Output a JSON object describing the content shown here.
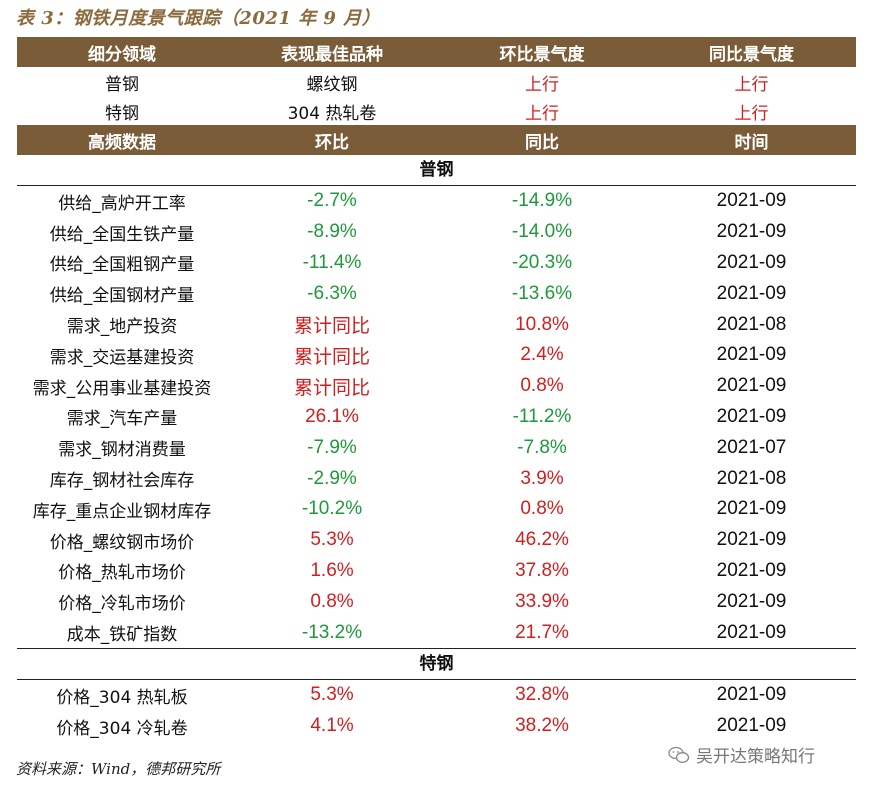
{
  "title": "表 3：钢铁月度景气跟踪（2021 年 9 月）",
  "header1": {
    "c1": "细分领域",
    "c2": "表现最佳品种",
    "c3": "环比景气度",
    "c4": "同比景气度"
  },
  "summary": [
    {
      "segment": "普钢",
      "best": "螺纹钢",
      "mom": "上行",
      "yoy": "上行"
    },
    {
      "segment": "特钢",
      "best": "304 热轧卷",
      "mom": "上行",
      "yoy": "上行"
    }
  ],
  "header2": {
    "c1": "高频数据",
    "c2": "环比",
    "c3": "同比",
    "c4": "时间"
  },
  "section_pugang": "普钢",
  "rows_pugang": [
    {
      "label": "供给_高炉开工率",
      "mom": "-2.7%",
      "yoy": "-14.9%",
      "time": "2021-09"
    },
    {
      "label": "供给_全国生铁产量",
      "mom": "-8.9%",
      "yoy": "-14.0%",
      "time": "2021-09"
    },
    {
      "label": "供给_全国粗钢产量",
      "mom": "-11.4%",
      "yoy": "-20.3%",
      "time": "2021-09"
    },
    {
      "label": "供给_全国钢材产量",
      "mom": "-6.3%",
      "yoy": "-13.6%",
      "time": "2021-09"
    },
    {
      "label": "需求_地产投资",
      "mom": "累计同比",
      "yoy": "10.8%",
      "time": "2021-08"
    },
    {
      "label": "需求_交运基建投资",
      "mom": "累计同比",
      "yoy": "2.4%",
      "time": "2021-09"
    },
    {
      "label": "需求_公用事业基建投资",
      "mom": "累计同比",
      "yoy": "0.8%",
      "time": "2021-09"
    },
    {
      "label": "需求_汽车产量",
      "mom": "26.1%",
      "yoy": "-11.2%",
      "time": "2021-09"
    },
    {
      "label": "需求_钢材消费量",
      "mom": "-7.9%",
      "yoy": "-7.8%",
      "time": "2021-07"
    },
    {
      "label": "库存_钢材社会库存",
      "mom": "-2.9%",
      "yoy": "3.9%",
      "time": "2021-08"
    },
    {
      "label": "库存_重点企业钢材库存",
      "mom": "-10.2%",
      "yoy": "0.8%",
      "time": "2021-09"
    },
    {
      "label": "价格_螺纹钢市场价",
      "mom": "5.3%",
      "yoy": "46.2%",
      "time": "2021-09"
    },
    {
      "label": "价格_热轧市场价",
      "mom": "1.6%",
      "yoy": "37.8%",
      "time": "2021-09"
    },
    {
      "label": "价格_冷轧市场价",
      "mom": "0.8%",
      "yoy": "33.9%",
      "time": "2021-09"
    },
    {
      "label": "成本_铁矿指数",
      "mom": "-13.2%",
      "yoy": "21.7%",
      "time": "2021-09"
    }
  ],
  "section_tegang": "特钢",
  "rows_tegang": [
    {
      "label": "价格_304 热轧板",
      "mom": "5.3%",
      "yoy": "32.8%",
      "time": "2021-09"
    },
    {
      "label": "价格_304 冷轧卷",
      "mom": "4.1%",
      "yoy": "38.2%",
      "time": "2021-09"
    }
  ],
  "source": "资料来源：Wind，德邦研究所",
  "watermark": "吴开达策略知行",
  "colors": {
    "header_bg": "#7a5c38",
    "up": "#d21e1e",
    "down": "#1e9a3a",
    "title": "#8b6a3d"
  }
}
